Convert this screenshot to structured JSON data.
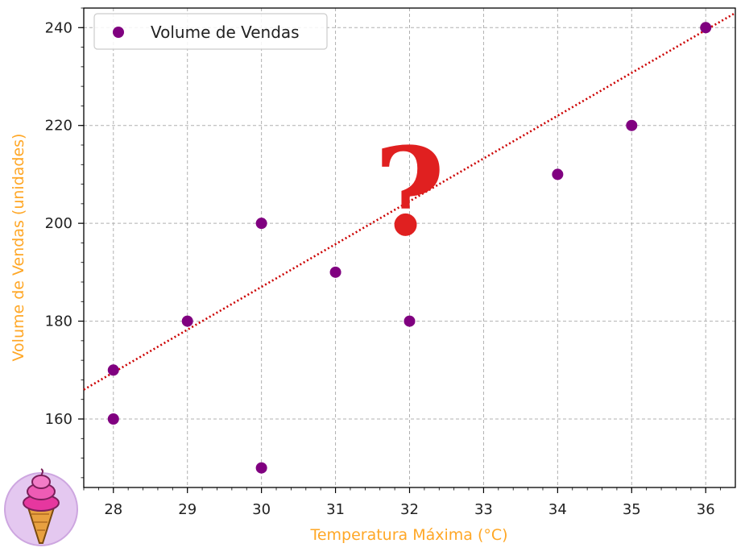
{
  "chart_data": {
    "type": "scatter",
    "title": "",
    "xlabel": "Temperatura Máxima (°C)",
    "ylabel": "Volume de Vendas (unidades)",
    "x_tick_labels": [
      "28",
      "29",
      "30",
      "31",
      "32",
      "33",
      "34",
      "35",
      "36"
    ],
    "y_ticks": [
      160,
      180,
      200,
      220,
      240
    ],
    "xlim": [
      27.6,
      36.4
    ],
    "ylim": [
      146,
      244
    ],
    "grid": true,
    "legend_position": "top-left",
    "series": [
      {
        "name": "Volume de Vendas",
        "color": "#800080",
        "points": [
          {
            "x": 28,
            "y": 170
          },
          {
            "x": 28,
            "y": 160
          },
          {
            "x": 29,
            "y": 180
          },
          {
            "x": 30,
            "y": 200
          },
          {
            "x": 30,
            "y": 150
          },
          {
            "x": 31,
            "y": 190
          },
          {
            "x": 32,
            "y": 180
          },
          {
            "x": 34,
            "y": 210
          },
          {
            "x": 35,
            "y": 220
          },
          {
            "x": 36,
            "y": 240
          }
        ]
      }
    ],
    "trend_line": {
      "style": "dotted",
      "color": "#cc0000",
      "from": {
        "x": 27.6,
        "y": 166
      },
      "to": {
        "x": 36.4,
        "y": 243
      }
    },
    "annotation": {
      "text": "?",
      "color": "#e02020",
      "x": 32,
      "y": 206
    },
    "axis_label_color": "#ffa726"
  },
  "decorations": {
    "logo_icon": "ice-cream-cone-icon"
  }
}
